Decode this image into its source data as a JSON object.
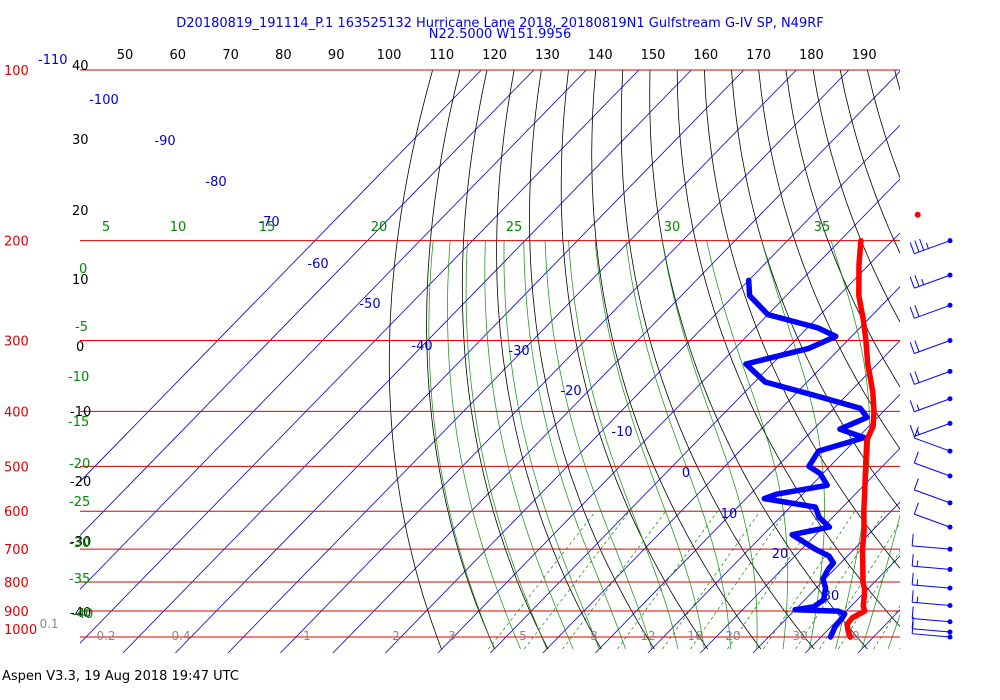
{
  "title": {
    "line1": "D20180819_191114_P.1 163525132 Hurricane Lane 2018, 20180819N1 Gulfstream G-IV SP, N49RF",
    "line2": "N22.5000 W151.9956"
  },
  "footer": "Aspen V3.3, 19 Aug 2018  19:47 UTC",
  "colors": {
    "isobar": "#dd0000",
    "isotherm": "#0000cc",
    "dry_adiabat": "#000000",
    "moist_adiabat": "#008800",
    "mixing_ratio": "#008800",
    "temperature": "#ff0000",
    "dewpoint": "#0000ff",
    "wind_barb": "#0000ff"
  },
  "chart_data": {
    "type": "skew-t",
    "pressure_axis": {
      "ticks": [
        100,
        200,
        300,
        400,
        500,
        600,
        700,
        800,
        900,
        1000
      ],
      "labels": [
        "100",
        "200",
        "300",
        "400",
        "500",
        "600",
        "700",
        "800",
        "900",
        "1000"
      ],
      "extra_label": "-110"
    },
    "top_axis_labels": [
      "50",
      "60",
      "70",
      "80",
      "90",
      "100",
      "110",
      "120",
      "130",
      "140",
      "150",
      "160",
      "170",
      "180",
      "190"
    ],
    "left_axis_labels": [
      "40",
      "30",
      "20",
      "10",
      "0",
      "-10",
      "-20",
      "-30",
      "-40"
    ],
    "isotherm_labels": [
      "-100",
      "-90",
      "-80",
      "-70",
      "-60",
      "-50",
      "-40",
      "-30",
      "-20",
      "-10",
      "0",
      "10",
      "20",
      "30"
    ],
    "theta_e_labels": [
      "5",
      "10",
      "15",
      "20",
      "25",
      "30",
      "35"
    ],
    "moist_left_labels": [
      "0",
      "-5",
      "-10",
      "-15",
      "-20",
      "-25",
      "-30",
      "-35",
      "-40"
    ],
    "mixing_ratio_labels": [
      "0.1",
      "0.2",
      "0.4",
      "1",
      "2",
      "3",
      "5",
      "8",
      "12",
      "16",
      "20",
      "30",
      "40"
    ],
    "temperature_profile": [
      {
        "p": 1000,
        "t": 25.6
      },
      {
        "p": 975,
        "t": 24.0
      },
      {
        "p": 950,
        "t": 22.6
      },
      {
        "p": 925,
        "t": 22.4
      },
      {
        "p": 900,
        "t": 23.5
      },
      {
        "p": 880,
        "t": 22.2
      },
      {
        "p": 850,
        "t": 20.8
      },
      {
        "p": 825,
        "t": 19.5
      },
      {
        "p": 800,
        "t": 17.8
      },
      {
        "p": 750,
        "t": 14.8
      },
      {
        "p": 700,
        "t": 11.6
      },
      {
        "p": 650,
        "t": 8.5
      },
      {
        "p": 600,
        "t": 4.8
      },
      {
        "p": 550,
        "t": 1.0
      },
      {
        "p": 500,
        "t": -3.2
      },
      {
        "p": 450,
        "t": -7.8
      },
      {
        "p": 425,
        "t": -9.2
      },
      {
        "p": 400,
        "t": -11.8
      },
      {
        "p": 370,
        "t": -15.6
      },
      {
        "p": 350,
        "t": -18.6
      },
      {
        "p": 330,
        "t": -21.8
      },
      {
        "p": 300,
        "t": -26.5
      },
      {
        "p": 275,
        "t": -31.0
      },
      {
        "p": 250,
        "t": -36.2
      },
      {
        "p": 220,
        "t": -42.0
      },
      {
        "p": 200,
        "t": -46.0
      }
    ],
    "dewpoint_profile": [
      {
        "p": 1000,
        "t": 21.8
      },
      {
        "p": 960,
        "t": 20.8
      },
      {
        "p": 925,
        "t": 20.5
      },
      {
        "p": 910,
        "t": 20.2
      },
      {
        "p": 900,
        "t": 18.4
      },
      {
        "p": 895,
        "t": 10.0
      },
      {
        "p": 885,
        "t": 13.0
      },
      {
        "p": 860,
        "t": 13.6
      },
      {
        "p": 820,
        "t": 11.8
      },
      {
        "p": 790,
        "t": 9.6
      },
      {
        "p": 760,
        "t": 8.8
      },
      {
        "p": 740,
        "t": 8.6
      },
      {
        "p": 720,
        "t": 6.5
      },
      {
        "p": 700,
        "t": 2.6
      },
      {
        "p": 660,
        "t": -4.5
      },
      {
        "p": 640,
        "t": 1.2
      },
      {
        "p": 615,
        "t": -2.6
      },
      {
        "p": 590,
        "t": -5.2
      },
      {
        "p": 570,
        "t": -16.5
      },
      {
        "p": 560,
        "t": -15.0
      },
      {
        "p": 540,
        "t": -7.0
      },
      {
        "p": 515,
        "t": -10.5
      },
      {
        "p": 500,
        "t": -14.0
      },
      {
        "p": 470,
        "t": -15.0
      },
      {
        "p": 445,
        "t": -8.8
      },
      {
        "p": 430,
        "t": -15.0
      },
      {
        "p": 410,
        "t": -12.0
      },
      {
        "p": 395,
        "t": -15.0
      },
      {
        "p": 375,
        "t": -26.0
      },
      {
        "p": 355,
        "t": -38.0
      },
      {
        "p": 330,
        "t": -45.0
      },
      {
        "p": 310,
        "t": -36.0
      },
      {
        "p": 295,
        "t": -33.0
      },
      {
        "p": 285,
        "t": -38.0
      },
      {
        "p": 270,
        "t": -50.0
      },
      {
        "p": 250,
        "t": -57.0
      },
      {
        "p": 235,
        "t": -60.0
      }
    ],
    "isolated_point": {
      "p": 180,
      "t": -40.0
    },
    "wind_barbs": [
      {
        "p": 200,
        "speed_kt": 35
      },
      {
        "p": 230,
        "speed_kt": 25
      },
      {
        "p": 260,
        "speed_kt": 20
      },
      {
        "p": 300,
        "speed_kt": 20
      },
      {
        "p": 340,
        "speed_kt": 20
      },
      {
        "p": 380,
        "speed_kt": 15
      },
      {
        "p": 420,
        "speed_kt": 15
      },
      {
        "p": 470,
        "speed_kt": 10
      },
      {
        "p": 520,
        "speed_kt": 10
      },
      {
        "p": 580,
        "speed_kt": 10
      },
      {
        "p": 640,
        "speed_kt": 10
      },
      {
        "p": 700,
        "speed_kt": 10
      },
      {
        "p": 760,
        "speed_kt": 15
      },
      {
        "p": 820,
        "speed_kt": 15
      },
      {
        "p": 880,
        "speed_kt": 15
      },
      {
        "p": 940,
        "speed_kt": 10
      },
      {
        "p": 980,
        "speed_kt": 10
      },
      {
        "p": 1000,
        "speed_kt": 10
      }
    ],
    "grid": true
  }
}
